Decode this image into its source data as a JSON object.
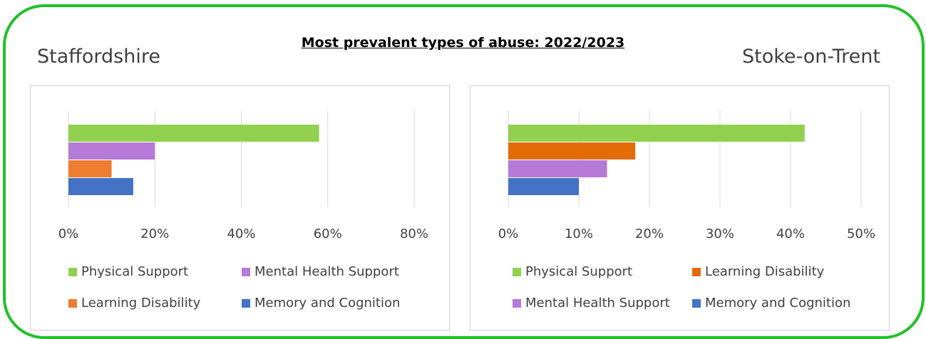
{
  "title": "Most prevalent types of abuse:  2022/2023",
  "regions": {
    "left": "Staffordshire",
    "right": "Stoke-on-Trent"
  },
  "chart_data": [
    {
      "type": "bar",
      "orientation": "horizontal",
      "region": "Staffordshire",
      "categories": [
        "Physical Support",
        "Mental Health Support",
        "Learning Disability",
        "Memory and Cognition"
      ],
      "values": [
        0.58,
        0.2,
        0.1,
        0.15
      ],
      "colors": [
        "#92d050",
        "#b57bd6",
        "#ed7d31",
        "#4472c4"
      ],
      "xlim": [
        0,
        0.8
      ],
      "ticks": [
        "0%",
        "20%",
        "40%",
        "60%",
        "80%"
      ],
      "grid": true,
      "legend_position": "bottom",
      "legend": [
        "Physical Support",
        "Mental Health Support",
        "Learning Disability",
        "Memory and Cognition"
      ]
    },
    {
      "type": "bar",
      "orientation": "horizontal",
      "region": "Stoke-on-Trent",
      "categories": [
        "Physical Support",
        "Learning Disability",
        "Mental Health Support",
        "Memory and Cognition"
      ],
      "values": [
        0.42,
        0.18,
        0.14,
        0.1
      ],
      "colors": [
        "#92d050",
        "#e36c09",
        "#b57bd6",
        "#4472c4"
      ],
      "xlim": [
        0,
        0.5
      ],
      "ticks": [
        "0%",
        "10%",
        "20%",
        "30%",
        "40%",
        "50%"
      ],
      "grid": true,
      "legend_position": "bottom",
      "legend": [
        "Physical Support",
        "Learning Disability",
        "Mental Health Support",
        "Memory and Cognition"
      ]
    }
  ]
}
